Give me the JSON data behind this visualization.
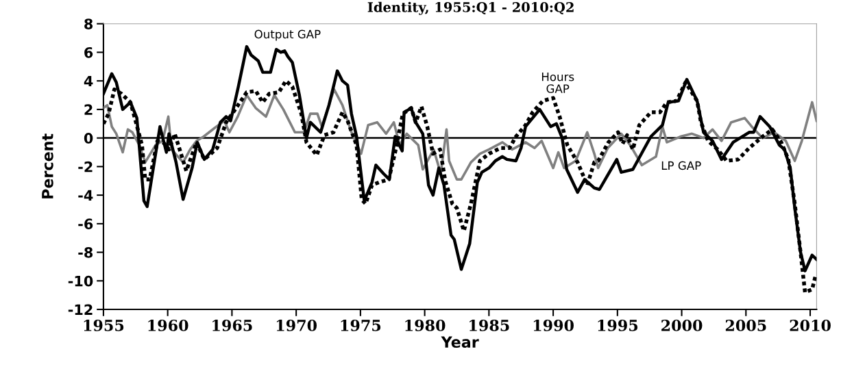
{
  "chart_data": {
    "type": "line",
    "title": "Identity, 1955:Q1 - 2010:Q2",
    "xlabel": "Year",
    "ylabel": "Percent",
    "xlim": [
      1955,
      2010.5
    ],
    "xticks": [
      1955,
      1960,
      1965,
      1970,
      1975,
      1980,
      1985,
      1990,
      1995,
      2000,
      2005,
      2010
    ],
    "ylim": [
      -12,
      8
    ],
    "yticks": [
      -12,
      -10,
      -8,
      -6,
      -4,
      -2,
      0,
      2,
      4,
      6,
      8
    ],
    "grid": false,
    "legend": false,
    "marker": "none",
    "ref_lines": [
      {
        "axis": "y",
        "value": 0,
        "color": "#000000"
      }
    ],
    "series": [
      {
        "name": "LP GAP",
        "color": "#808080",
        "line_style": "solid",
        "x": [
          1955.0,
          1955.3,
          1955.65,
          1956.0,
          1956.5,
          1956.9,
          1957.25,
          1957.8,
          1958.25,
          1959.05,
          1959.6,
          1960.05,
          1960.3,
          1961.2,
          1961.75,
          1962.25,
          1962.8,
          1963.65,
          1964.4,
          1964.8,
          1965.45,
          1966.15,
          1966.85,
          1967.65,
          1968.3,
          1969.0,
          1969.9,
          1970.6,
          1971.1,
          1971.65,
          1972.0,
          1972.95,
          1973.6,
          1974.3,
          1975.05,
          1975.6,
          1976.3,
          1977.0,
          1977.6,
          1978.05,
          1978.6,
          1979.5,
          1979.85,
          1980.7,
          1981.25,
          1981.7,
          1981.9,
          1982.5,
          1982.85,
          1983.6,
          1984.3,
          1985.0,
          1986.05,
          1986.8,
          1987.85,
          1988.55,
          1989.1,
          1990.0,
          1990.4,
          1990.85,
          1991.75,
          1992.65,
          1993.2,
          1993.5,
          1994.25,
          1995.3,
          1996.0,
          1996.9,
          1998.0,
          1998.5,
          1998.85,
          1999.9,
          2000.8,
          2001.7,
          2002.4,
          2003.1,
          2003.85,
          2004.9,
          2005.45,
          2006.3,
          2007.2,
          2008.1,
          2008.8,
          2009.35,
          2010.15,
          2010.5
        ],
        "values": [
          2.1,
          2.3,
          0.8,
          0.3,
          -1.0,
          0.6,
          0.4,
          -0.5,
          -1.7,
          -0.5,
          -0.2,
          1.5,
          -0.8,
          -1.7,
          -0.8,
          -0.2,
          0.1,
          0.7,
          1.2,
          0.4,
          1.5,
          3.0,
          2.1,
          1.5,
          3.0,
          2.0,
          0.4,
          0.4,
          1.7,
          1.7,
          0.8,
          3.4,
          2.3,
          0.4,
          -1.1,
          0.9,
          1.1,
          0.3,
          1.1,
          -0.5,
          0.3,
          -0.5,
          -2.2,
          -0.8,
          -2.5,
          0.6,
          -1.6,
          -2.9,
          -2.9,
          -1.7,
          -1.1,
          -0.8,
          -0.3,
          -0.8,
          -0.3,
          -0.7,
          -0.2,
          -2.1,
          -1.0,
          -2.1,
          -1.6,
          0.4,
          -1.1,
          -2.1,
          -0.7,
          0.3,
          -0.5,
          -1.9,
          -1.3,
          0.8,
          -0.3,
          0.1,
          0.3,
          0.0,
          0.6,
          -0.2,
          1.1,
          1.4,
          0.8,
          0.0,
          0.4,
          -0.2,
          -1.6,
          -0.2,
          2.5,
          1.2
        ]
      },
      {
        "name": "Output GAP",
        "color": "#000000",
        "line_style": "solid",
        "x": [
          1955.0,
          1955.65,
          1956.0,
          1956.5,
          1957.1,
          1957.6,
          1958.15,
          1958.4,
          1959.4,
          1959.9,
          1960.1,
          1960.65,
          1961.2,
          1961.9,
          1962.3,
          1962.85,
          1963.5,
          1964.1,
          1964.55,
          1964.9,
          1965.5,
          1966.15,
          1966.5,
          1967.05,
          1967.4,
          1968.0,
          1968.45,
          1968.8,
          1969.1,
          1969.35,
          1969.7,
          1970.25,
          1970.8,
          1971.1,
          1971.9,
          1972.55,
          1973.2,
          1973.6,
          1974.0,
          1974.3,
          1974.7,
          1975.3,
          1975.9,
          1976.2,
          1976.8,
          1977.25,
          1977.7,
          1978.25,
          1978.4,
          1978.95,
          1979.3,
          1979.85,
          1980.3,
          1980.65,
          1981.1,
          1981.5,
          1982.05,
          1982.3,
          1982.85,
          1983.5,
          1984.1,
          1984.45,
          1985.0,
          1985.5,
          1986.05,
          1986.4,
          1987.1,
          1987.5,
          1987.85,
          1988.4,
          1988.95,
          1989.8,
          1990.25,
          1990.7,
          1991.05,
          1991.9,
          1992.45,
          1993.2,
          1993.6,
          1994.95,
          1995.3,
          1996.2,
          1997.6,
          1998.5,
          1998.95,
          1999.75,
          2000.4,
          2001.2,
          2001.7,
          2002.4,
          2003.1,
          2004.0,
          2005.25,
          2005.6,
          2006.1,
          2006.85,
          2007.6,
          2008.0,
          2008.45,
          2008.8,
          2009.25,
          2009.6,
          2010.15,
          2010.5
        ],
        "values": [
          3.1,
          4.5,
          3.9,
          2.0,
          2.5,
          1.4,
          -4.4,
          -4.8,
          0.8,
          -1.0,
          0.3,
          -1.7,
          -4.3,
          -2.1,
          -0.3,
          -1.5,
          -0.8,
          1.1,
          1.5,
          1.2,
          3.6,
          6.4,
          5.8,
          5.4,
          4.6,
          4.6,
          6.2,
          6.0,
          6.1,
          5.7,
          5.3,
          3.0,
          0.0,
          1.1,
          0.4,
          2.3,
          4.7,
          4.0,
          3.7,
          1.7,
          0.1,
          -4.4,
          -3.1,
          -1.9,
          -2.5,
          -2.9,
          0.1,
          -0.9,
          1.8,
          2.1,
          1.1,
          0.3,
          -3.3,
          -4.0,
          -2.1,
          -3.3,
          -6.8,
          -7.1,
          -9.2,
          -7.4,
          -3.1,
          -2.4,
          -2.1,
          -1.6,
          -1.3,
          -1.5,
          -1.6,
          -0.7,
          0.8,
          1.4,
          2.0,
          0.8,
          1.0,
          0.0,
          -2.2,
          -3.8,
          -2.9,
          -3.5,
          -3.6,
          -1.5,
          -2.4,
          -2.2,
          0.1,
          0.9,
          2.5,
          2.6,
          4.1,
          2.6,
          0.4,
          -0.2,
          -1.5,
          -0.3,
          0.4,
          0.4,
          1.5,
          0.8,
          -0.5,
          -0.8,
          -2.1,
          -4.9,
          -8.0,
          -9.3,
          -8.2,
          -8.5
        ]
      },
      {
        "name": "Hours\nGAP",
        "color": "#000000",
        "line_style": "dotted",
        "x": [
          1955.0,
          1955.4,
          1955.85,
          1956.4,
          1957.1,
          1957.5,
          1958.0,
          1958.25,
          1958.6,
          1959.2,
          1959.65,
          1960.1,
          1960.55,
          1961.45,
          1962.25,
          1962.85,
          1963.85,
          1964.55,
          1965.25,
          1966.15,
          1966.85,
          1967.4,
          1967.9,
          1968.65,
          1969.2,
          1969.7,
          1970.4,
          1970.8,
          1971.6,
          1972.2,
          1972.9,
          1973.6,
          1974.0,
          1974.7,
          1975.1,
          1975.4,
          1975.9,
          1976.45,
          1977.2,
          1977.7,
          1978.3,
          1978.95,
          1979.3,
          1979.75,
          1980.2,
          1980.65,
          1981.2,
          1981.6,
          1982.15,
          1982.5,
          1983.05,
          1983.6,
          1984.3,
          1985.0,
          1985.9,
          1986.6,
          1987.1,
          1987.85,
          1988.4,
          1989.2,
          1990.0,
          1990.5,
          1991.1,
          1991.9,
          1992.65,
          1993.2,
          1993.5,
          1994.3,
          1995.05,
          1995.4,
          1995.75,
          1996.2,
          1996.7,
          1997.6,
          1998.3,
          1998.85,
          1999.6,
          2000.3,
          2001.2,
          2001.5,
          2002.05,
          2002.8,
          2003.5,
          2004.4,
          2005.25,
          2006.3,
          2007.05,
          2007.75,
          2008.3,
          2008.8,
          2009.25,
          2009.6,
          2010.15,
          2010.4
        ],
        "values": [
          1.0,
          1.7,
          3.4,
          3.1,
          2.5,
          1.2,
          -0.5,
          -2.9,
          -2.9,
          -0.2,
          -0.3,
          -0.8,
          0.3,
          -2.3,
          -0.3,
          -1.5,
          -0.7,
          1.1,
          2.0,
          3.2,
          3.3,
          2.5,
          3.1,
          3.2,
          4.0,
          3.6,
          1.7,
          -0.3,
          -1.2,
          0.2,
          0.4,
          1.8,
          1.2,
          -0.5,
          -4.3,
          -4.6,
          -3.3,
          -3.1,
          -2.9,
          -1.0,
          1.7,
          2.1,
          1.1,
          2.2,
          0.8,
          -1.1,
          -0.8,
          -3.0,
          -4.6,
          -4.9,
          -6.5,
          -4.6,
          -1.6,
          -1.1,
          -0.7,
          -0.7,
          0.1,
          0.9,
          1.8,
          2.6,
          2.8,
          1.5,
          -0.5,
          -1.7,
          -3.3,
          -1.7,
          -1.6,
          -0.3,
          0.4,
          -0.4,
          0.2,
          -0.8,
          0.9,
          1.8,
          1.8,
          2.5,
          2.6,
          3.9,
          2.6,
          1.1,
          -0.2,
          -0.8,
          -1.6,
          -1.5,
          -0.7,
          0.1,
          0.6,
          -0.3,
          -1.5,
          -4.6,
          -8.0,
          -10.8,
          -10.6,
          -9.7
        ]
      }
    ]
  }
}
